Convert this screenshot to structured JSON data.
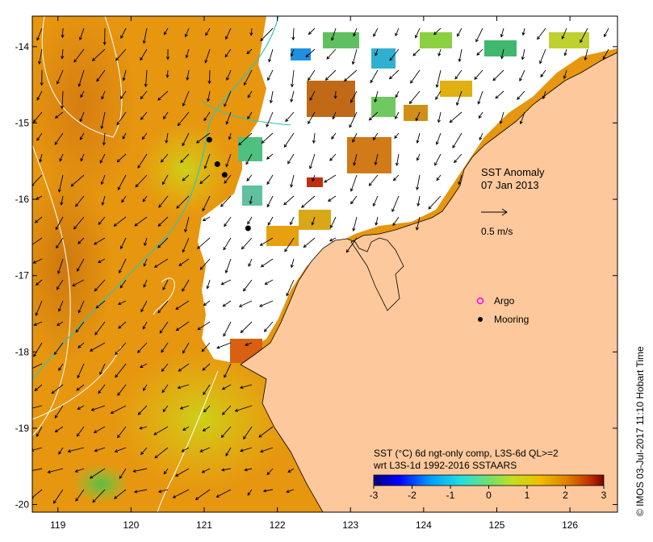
{
  "map": {
    "title": "SST Anomaly",
    "date": "07 Jan 2013",
    "scale_label": "0.5 m/s",
    "longitude_ticks": [
      "119",
      "120",
      "121",
      "122",
      "123",
      "124",
      "125",
      "126"
    ],
    "latitude_ticks": [
      "-14",
      "-15",
      "-16",
      "-17",
      "-18",
      "-19",
      "-20"
    ],
    "lon_range": [
      118.65,
      126.65
    ],
    "lat_range": [
      -20.1,
      -13.6
    ],
    "legend": {
      "argo_label": "Argo",
      "mooring_label": "Mooring",
      "argo_color": "#ff00ff",
      "mooring_color": "#000000"
    },
    "moorings": [
      {
        "lon": 121.07,
        "lat": -15.22
      },
      {
        "lon": 121.18,
        "lat": -15.54
      },
      {
        "lon": 121.28,
        "lat": -15.68
      },
      {
        "lon": 121.6,
        "lat": -16.38
      }
    ],
    "colorbar": {
      "caption_line1": "SST (°C) 6d ngt-only comp, L3S-6d QL>=2",
      "caption_line2": "wrt L3S-1d 1992-2016 SSTAARS",
      "ticks": [
        "-3",
        "-2",
        "-1",
        "0",
        "1",
        "2",
        "3"
      ],
      "range": [
        -3,
        3
      ],
      "colors": [
        "#00007f",
        "#0000ff",
        "#00a0ff",
        "#20e0e0",
        "#70e070",
        "#c0e020",
        "#f0c000",
        "#e08000",
        "#c03000",
        "#7f0000"
      ]
    },
    "credit": "© IMOS 03-Jul-2017 11:10 Hobart Time",
    "colors": {
      "land": "#fdc89b",
      "ocean_base": "#e6960f",
      "no_data": "#ffffff"
    }
  }
}
